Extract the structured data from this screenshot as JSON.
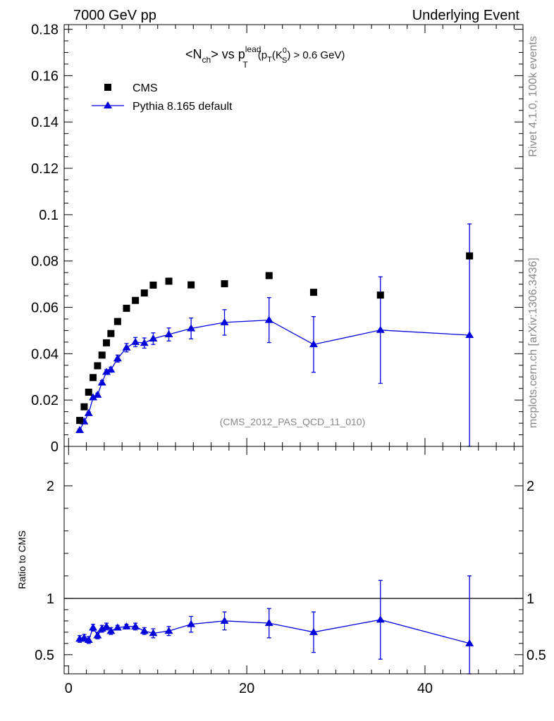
{
  "header": {
    "left": "7000 GeV pp",
    "right": "Underlying Event"
  },
  "side_labels": {
    "top": "Rivet 4.1.0,  100k events",
    "bottom": "mcplots.cern.ch [arXiv:1306.3436]"
  },
  "chart_data": {
    "type": "scatter",
    "title_parts": {
      "pre": "<N",
      "ch_sub": "ch",
      "mid": "> vs p",
      "lead_sup": "lead",
      "t_sub": "T",
      "cond_open": "(p",
      "cond_t_sub": "T",
      "cond_k": "(K",
      "zero_sup": "0",
      "s_sub": "S",
      "cond_close": ") > 0.6 GeV)"
    },
    "annotation": "(CMS_2012_PAS_QCD_11_010)",
    "legend": [
      {
        "name": "CMS",
        "marker": "square",
        "color": "#000000"
      },
      {
        "name": "Pythia 8.165 default",
        "marker": "triangle",
        "color": "#0000dd"
      }
    ],
    "main": {
      "xlim": [
        -0.5,
        51
      ],
      "ylim": [
        0,
        0.182
      ],
      "yticks": [
        "0",
        "0.02",
        "0.04",
        "0.06",
        "0.08",
        "0.1",
        "0.12",
        "0.14",
        "0.16",
        "0.18"
      ],
      "ytick_values": [
        0,
        0.02,
        0.04,
        0.06,
        0.08,
        0.1,
        0.12,
        0.14,
        0.16,
        0.18
      ]
    },
    "ratio": {
      "ylabel": "Ratio to CMS",
      "ylim": [
        0.33,
        2.35
      ],
      "yticks": [
        "0.5",
        "1",
        "2"
      ],
      "ytick_values": [
        0.5,
        1,
        2
      ],
      "reference": 1
    },
    "xticks": [
      "0",
      "20",
      "40"
    ],
    "xtick_values": [
      0,
      20,
      40
    ],
    "series": [
      {
        "name": "CMS",
        "x": [
          1.25,
          1.75,
          2.25,
          2.75,
          3.25,
          3.75,
          4.25,
          4.75,
          5.5,
          6.5,
          7.5,
          8.5,
          9.5,
          11.25,
          13.75,
          17.5,
          22.5,
          27.5,
          35,
          45
        ],
        "y": [
          0.0112,
          0.0171,
          0.0234,
          0.0297,
          0.0348,
          0.0394,
          0.0447,
          0.0487,
          0.0539,
          0.0596,
          0.063,
          0.0662,
          0.0696,
          0.0713,
          0.0697,
          0.0702,
          0.0737,
          0.0665,
          0.0653,
          0.0822
        ],
        "err": [
          0,
          0,
          0,
          0,
          0,
          0,
          0,
          0,
          0,
          0,
          0,
          0,
          0,
          0,
          0,
          0,
          0,
          0,
          0,
          0
        ]
      },
      {
        "name": "Pythia 8.165 default",
        "x": [
          1.25,
          1.75,
          2.25,
          2.75,
          3.25,
          3.75,
          4.25,
          4.75,
          5.5,
          6.5,
          7.5,
          8.5,
          9.5,
          11.25,
          13.75,
          17.5,
          22.5,
          27.5,
          35,
          45
        ],
        "y": [
          0.007,
          0.0107,
          0.0143,
          0.0211,
          0.0222,
          0.0275,
          0.0321,
          0.0331,
          0.0379,
          0.0426,
          0.045,
          0.0446,
          0.0465,
          0.0483,
          0.0509,
          0.0535,
          0.0545,
          0.044,
          0.0502,
          0.048
        ],
        "err": [
          0.0005,
          0.0005,
          0.0006,
          0.0007,
          0.0008,
          0.0009,
          0.001,
          0.0011,
          0.0015,
          0.0018,
          0.002,
          0.0022,
          0.0025,
          0.0028,
          0.0045,
          0.0055,
          0.0097,
          0.012,
          0.023,
          0.048
        ]
      }
    ],
    "ratio_series": {
      "name": "Pythia 8.165 default / CMS",
      "x": [
        1.25,
        1.75,
        2.25,
        2.75,
        3.25,
        3.75,
        4.25,
        4.75,
        5.5,
        6.5,
        7.5,
        8.5,
        9.5,
        11.25,
        13.75,
        17.5,
        22.5,
        27.5,
        35,
        45
      ],
      "y": [
        0.64,
        0.65,
        0.63,
        0.74,
        0.67,
        0.73,
        0.75,
        0.71,
        0.74,
        0.75,
        0.75,
        0.71,
        0.69,
        0.71,
        0.77,
        0.8,
        0.78,
        0.7,
        0.81,
        0.6
      ],
      "err": [
        0.03,
        0.03,
        0.03,
        0.03,
        0.03,
        0.03,
        0.03,
        0.03,
        0.02,
        0.02,
        0.03,
        0.03,
        0.04,
        0.04,
        0.07,
        0.08,
        0.13,
        0.18,
        0.35,
        0.6
      ]
    }
  }
}
